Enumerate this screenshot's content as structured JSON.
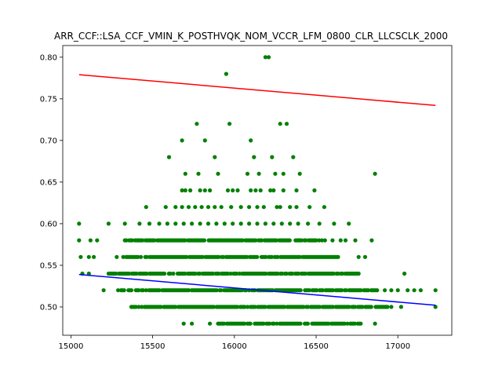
{
  "chart_data": {
    "type": "scatter",
    "title": "ARR_CCF::LSA_CCF_VMIN_K_POSTHVQK_NOM_VCCR_LFM_0800_CLR_LLCSCLK_2000",
    "xlabel": "",
    "ylabel": "",
    "xlim": [
      14950,
      17330
    ],
    "ylim": [
      0.466,
      0.814
    ],
    "xticks": [
      15000,
      15500,
      16000,
      16500,
      17000
    ],
    "yticks": [
      0.5,
      0.55,
      0.6,
      0.65,
      0.7,
      0.75,
      0.8
    ],
    "ytick_labels": [
      "0.50",
      "0.55",
      "0.60",
      "0.65",
      "0.70",
      "0.75",
      "0.80"
    ],
    "grid": false,
    "legend": "none",
    "colors": {
      "points": "#008000",
      "upper_line": "#ff0000",
      "lower_line": "#0000ff",
      "axes": "#000000"
    },
    "series": [
      {
        "kind": "scatter",
        "points": [
          [
            16190,
            0.8
          ],
          [
            16210,
            0.8
          ],
          [
            15950,
            0.78
          ],
          [
            15770,
            0.72
          ],
          [
            15970,
            0.72
          ],
          [
            16280,
            0.72
          ],
          [
            16320,
            0.72
          ],
          [
            15680,
            0.7
          ],
          [
            15820,
            0.7
          ],
          [
            16100,
            0.7
          ],
          [
            15600,
            0.68
          ],
          [
            15880,
            0.68
          ],
          [
            16120,
            0.68
          ],
          [
            16230,
            0.68
          ],
          [
            16360,
            0.68
          ],
          [
            15700,
            0.66
          ],
          [
            15780,
            0.66
          ],
          [
            15900,
            0.66
          ],
          [
            16080,
            0.66
          ],
          [
            16150,
            0.66
          ],
          [
            16250,
            0.66
          ],
          [
            16300,
            0.66
          ],
          [
            16400,
            0.66
          ],
          [
            16860,
            0.66
          ],
          [
            15680,
            0.64
          ],
          [
            15700,
            0.64
          ],
          [
            15730,
            0.64
          ],
          [
            15790,
            0.64
          ],
          [
            15820,
            0.64
          ],
          [
            15850,
            0.64
          ],
          [
            15960,
            0.64
          ],
          [
            15990,
            0.64
          ],
          [
            16020,
            0.64
          ],
          [
            16100,
            0.64
          ],
          [
            16130,
            0.64
          ],
          [
            16160,
            0.64
          ],
          [
            16220,
            0.64
          ],
          [
            16240,
            0.64
          ],
          [
            16300,
            0.64
          ],
          [
            16380,
            0.64
          ],
          [
            16490,
            0.64
          ],
          [
            15460,
            0.62
          ],
          [
            15580,
            0.62
          ],
          [
            15640,
            0.62
          ],
          [
            15680,
            0.62
          ],
          [
            15720,
            0.62
          ],
          [
            15760,
            0.62
          ],
          [
            15800,
            0.62
          ],
          [
            15840,
            0.62
          ],
          [
            15880,
            0.62
          ],
          [
            15920,
            0.62
          ],
          [
            15980,
            0.62
          ],
          [
            16040,
            0.62
          ],
          [
            16090,
            0.62
          ],
          [
            16140,
            0.62
          ],
          [
            16180,
            0.62
          ],
          [
            16260,
            0.62
          ],
          [
            16280,
            0.62
          ],
          [
            16340,
            0.62
          ],
          [
            16380,
            0.62
          ],
          [
            16460,
            0.62
          ],
          [
            16550,
            0.62
          ],
          [
            15050,
            0.6
          ],
          [
            15230,
            0.6
          ],
          [
            15330,
            0.6
          ],
          [
            15420,
            0.6
          ],
          [
            15480,
            0.6
          ],
          [
            15540,
            0.6
          ],
          [
            15590,
            0.6
          ],
          [
            15640,
            0.6
          ],
          [
            15690,
            0.6
          ],
          [
            15740,
            0.6
          ],
          [
            15790,
            0.6
          ],
          [
            15840,
            0.6
          ],
          [
            15890,
            0.6
          ],
          [
            15940,
            0.6
          ],
          [
            15990,
            0.6
          ],
          [
            16040,
            0.6
          ],
          [
            16090,
            0.6
          ],
          [
            16140,
            0.6
          ],
          [
            16190,
            0.6
          ],
          [
            16240,
            0.6
          ],
          [
            16290,
            0.6
          ],
          [
            16340,
            0.6
          ],
          [
            16390,
            0.6
          ],
          [
            16450,
            0.6
          ],
          [
            16520,
            0.6
          ],
          [
            16610,
            0.6
          ],
          [
            16700,
            0.6
          ],
          [
            16600,
            0.58
          ],
          [
            16650,
            0.58
          ],
          [
            16680,
            0.58
          ],
          [
            16740,
            0.58
          ],
          [
            16840,
            0.58
          ],
          [
            15050,
            0.58
          ],
          [
            15120,
            0.58
          ],
          [
            15160,
            0.58
          ],
          [
            15060,
            0.56
          ],
          [
            15110,
            0.56
          ],
          [
            15140,
            0.56
          ],
          [
            15280,
            0.56
          ],
          [
            16760,
            0.56
          ],
          [
            16800,
            0.56
          ],
          [
            15070,
            0.54
          ],
          [
            15110,
            0.54
          ],
          [
            17040,
            0.54
          ],
          [
            15200,
            0.52
          ],
          [
            16920,
            0.52
          ],
          [
            16960,
            0.52
          ],
          [
            17000,
            0.52
          ],
          [
            17060,
            0.52
          ],
          [
            17100,
            0.52
          ],
          [
            17140,
            0.52
          ],
          [
            17230,
            0.52
          ],
          [
            16960,
            0.5
          ],
          [
            17020,
            0.5
          ],
          [
            17230,
            0.5
          ],
          [
            15690,
            0.48
          ],
          [
            15740,
            0.48
          ],
          [
            15850,
            0.48
          ],
          [
            16860,
            0.48
          ]
        ],
        "bands": [
          {
            "y": 0.58,
            "from": 15330,
            "to": 16560
          },
          {
            "y": 0.56,
            "from": 15320,
            "to": 16640
          },
          {
            "y": 0.54,
            "from": 15230,
            "to": 16760
          },
          {
            "y": 0.52,
            "from": 15280,
            "to": 16880
          },
          {
            "y": 0.5,
            "from": 15370,
            "to": 16940
          },
          {
            "y": 0.48,
            "from": 15900,
            "to": 16780
          }
        ],
        "bands_note": "dense rows of points spanning the x range shown"
      },
      {
        "kind": "line",
        "name": "",
        "points": [
          [
            15050,
            0.779
          ],
          [
            17230,
            0.742
          ]
        ]
      },
      {
        "kind": "line",
        "name": "",
        "points": [
          [
            15050,
            0.539
          ],
          [
            17230,
            0.502
          ]
        ]
      }
    ]
  }
}
